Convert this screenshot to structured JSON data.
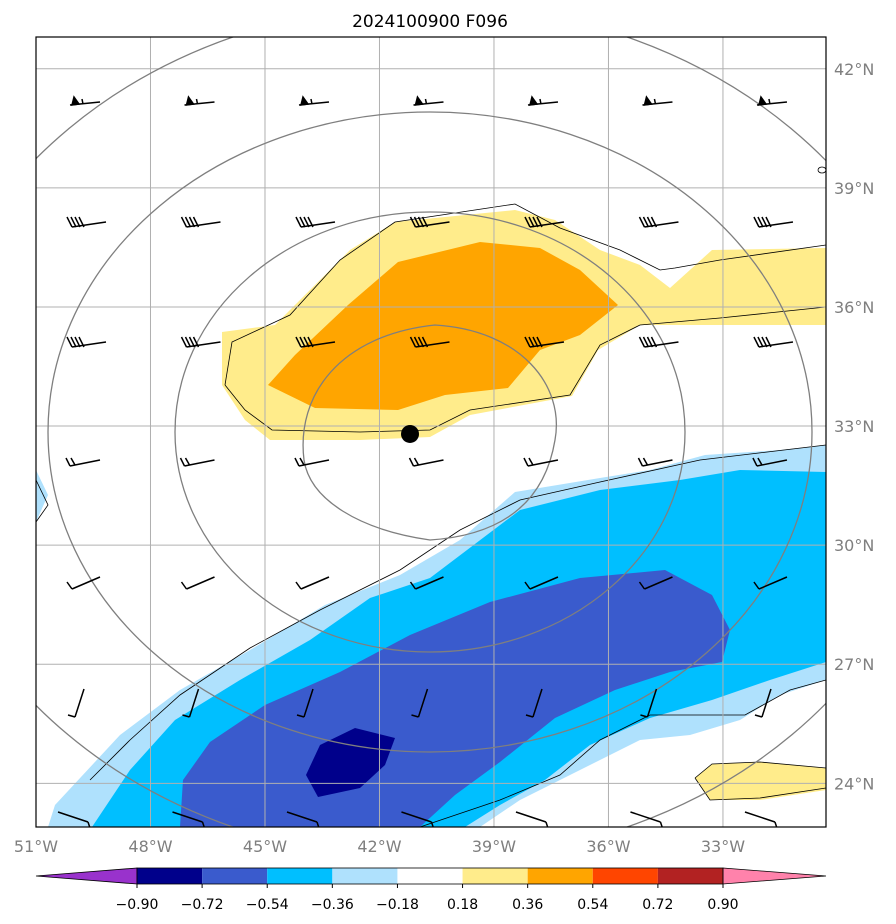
{
  "title": "2024100900 F096",
  "map": {
    "lon_range": [
      -51,
      -30.3
    ],
    "lat_range": [
      22.9,
      42.8
    ],
    "lon_ticks": [
      -51,
      -48,
      -45,
      -42,
      -39,
      -36,
      -33
    ],
    "lat_ticks": [
      24,
      27,
      30,
      33,
      36,
      39,
      42
    ],
    "lon_labels": [
      "51°W",
      "48°W",
      "45°W",
      "42°W",
      "39°W",
      "36°W",
      "33°W"
    ],
    "lat_labels": [
      "24°N",
      "27°N",
      "30°N",
      "33°N",
      "36°N",
      "39°N",
      "42°N"
    ],
    "grid": true,
    "center_marker": {
      "lon": -41.2,
      "lat": 32.8
    }
  },
  "colorbar": {
    "levels": [
      "−0.90",
      "−0.72",
      "−0.54",
      "−0.36",
      "−0.18",
      "0.18",
      "0.36",
      "0.54",
      "0.72",
      "0.90"
    ],
    "colors": [
      "#9932cc",
      "#00008b",
      "#3a5bcd",
      "#00bfff",
      "#afe1fd",
      "#ffffff",
      "#ffec8b",
      "#ffa500",
      "#ff4500",
      "#b22222",
      "#ff82ab"
    ],
    "extend": "both"
  },
  "chart_data": {
    "type": "heatmap",
    "title": "2024100900 F096",
    "xlabel": "",
    "ylabel": "",
    "xlim": [
      -51,
      -30.3
    ],
    "ylim": [
      22.9,
      42.8
    ],
    "fields": [
      {
        "level": "0.18 to 0.36",
        "color": "#ffec8b",
        "region": "band north of 33°N from 46°W to 30°W; patch near 33°W 24°N"
      },
      {
        "level": "0.36 to 0.54",
        "color": "#ffa500",
        "region": "core 34–37°N, 45°W to 37°W"
      },
      {
        "level": "−0.36 to −0.18",
        "color": "#afe1fd",
        "region": "band SW–NE from 50°W 23°N to 30°W 32°N"
      },
      {
        "level": "−0.54 to −0.36",
        "color": "#00bfff",
        "region": "inside the light blue band"
      },
      {
        "level": "−0.72 to −0.54",
        "color": "#3a5bcd",
        "region": "core 23–29°N, 46°W to 34°W"
      },
      {
        "level": "−0.90 to −0.72",
        "color": "#00008b",
        "region": "small core near 43°W 24.5°N"
      }
    ]
  }
}
